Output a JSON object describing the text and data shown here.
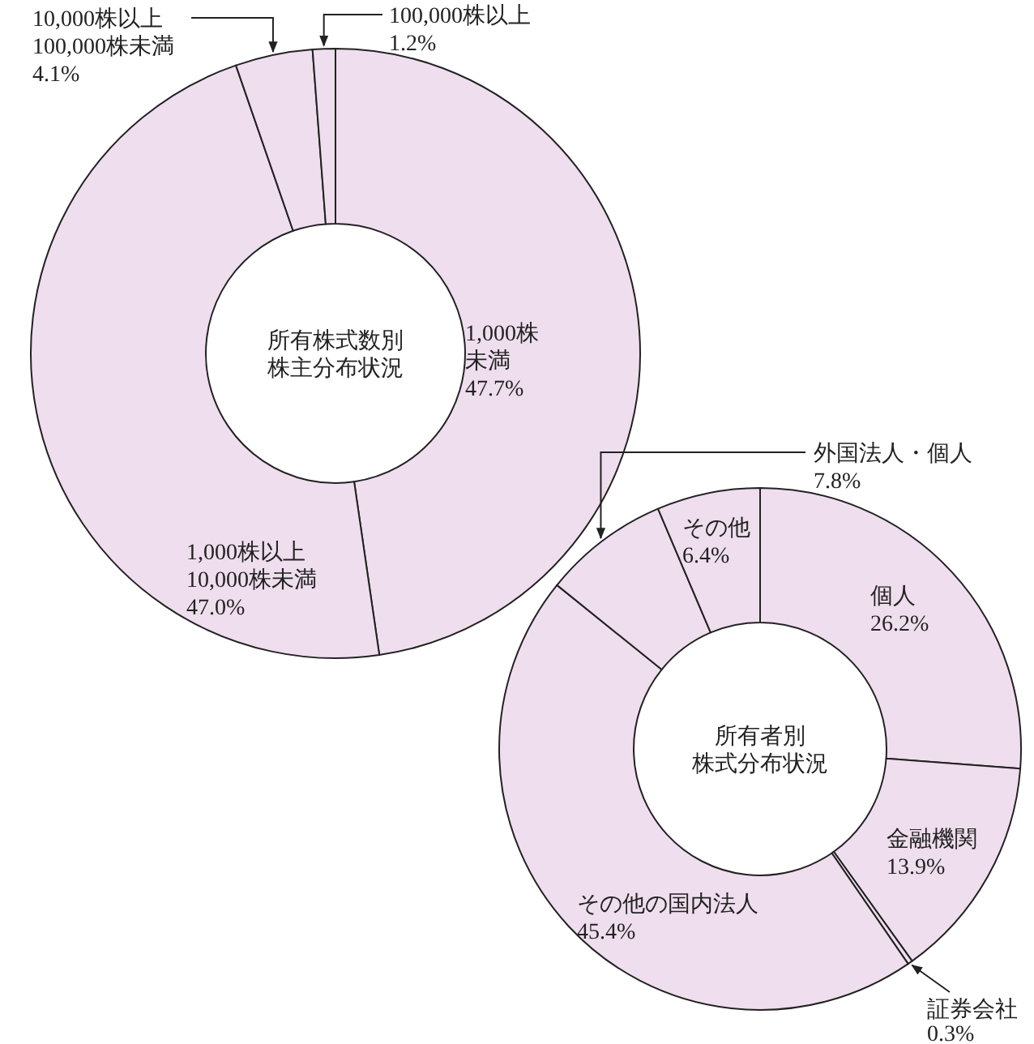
{
  "chart_data": [
    {
      "type": "donut",
      "title": "所有株式数別株主分布状況",
      "categories": [
        "1,000株未満",
        "1,000株以上10,000株未満",
        "10,000株以上100,000株未満",
        "100,000株以上"
      ],
      "values": [
        47.7,
        47.0,
        4.1,
        1.2
      ],
      "value_labels": [
        "47.7%",
        "47.0%",
        "4.1%",
        "1.2%"
      ],
      "colors": [
        "#efdeee",
        "#efdeee",
        "#efdeee",
        "#efdeee"
      ]
    },
    {
      "type": "donut",
      "title": "所有者別株式分布状況",
      "categories": [
        "個人",
        "金融機関",
        "証券会社",
        "その他の国内法人",
        "外国法人・個人",
        "その他"
      ],
      "values": [
        26.2,
        13.9,
        0.3,
        45.4,
        7.8,
        6.4
      ],
      "value_labels": [
        "26.2%",
        "13.9%",
        "0.3%",
        "45.4%",
        "7.8%",
        "6.4%"
      ],
      "colors": [
        "#efdeee",
        "#efdeee",
        "#efdeee",
        "#efdeee",
        "#efdeee",
        "#efdeee"
      ]
    }
  ]
}
